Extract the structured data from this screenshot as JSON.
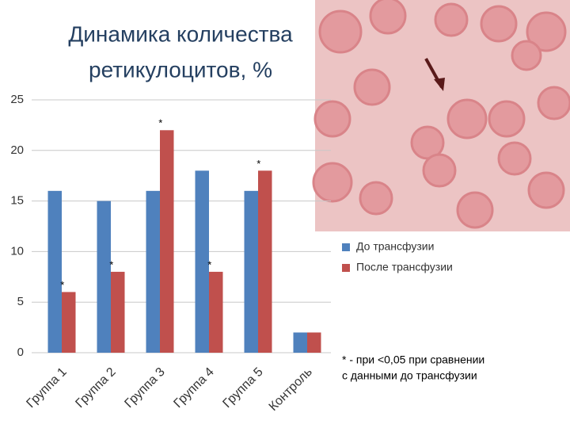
{
  "chart_data": {
    "type": "bar",
    "title": [
      "Динамика количества",
      "ретикулоцитов, %"
    ],
    "categories": [
      "Группа 1",
      "Группа 2",
      "Группа 3",
      "Группа 4",
      "Группа 5",
      "Контроль"
    ],
    "series": [
      {
        "name": "До трансфузии",
        "color": "#4f81bd",
        "values": [
          16,
          15,
          16,
          18,
          16,
          2
        ]
      },
      {
        "name": "После трансфузии",
        "color": "#c0504d",
        "values": [
          6,
          8,
          22,
          8,
          18,
          2
        ],
        "markers": [
          "*",
          "*",
          "*",
          "*",
          "*",
          null
        ]
      }
    ],
    "ylim": [
      0,
      25
    ],
    "yticks": [
      0,
      5,
      10,
      15,
      20,
      25
    ],
    "grid": true,
    "footnote": [
      "* - при <0,05 при сравнении",
      "с данными до трансфузии"
    ]
  }
}
